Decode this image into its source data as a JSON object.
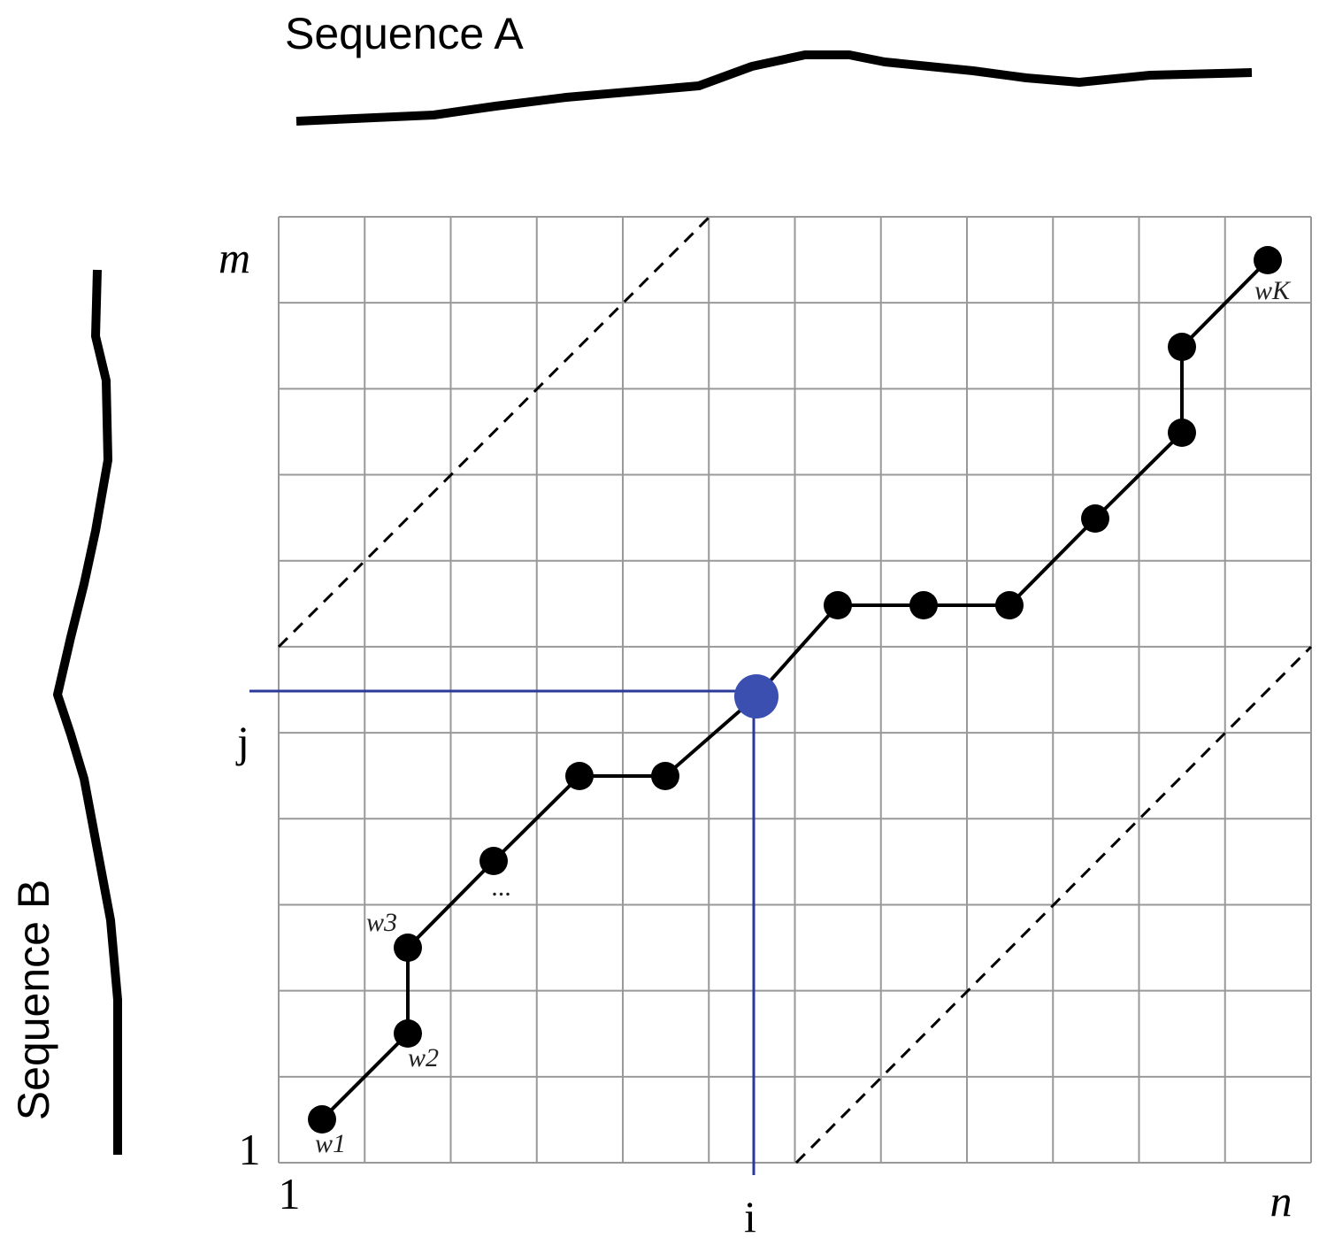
{
  "sequences": {
    "a": "Sequence A",
    "b": "Sequence B"
  },
  "axis_labels": {
    "y_top": "m",
    "y_mid": "j",
    "y_bottom": "1",
    "x_left": "1",
    "x_mid": "i",
    "x_right": "n"
  },
  "point_labels": [
    "w1",
    "w2",
    "w3",
    "...",
    "wK"
  ]
}
